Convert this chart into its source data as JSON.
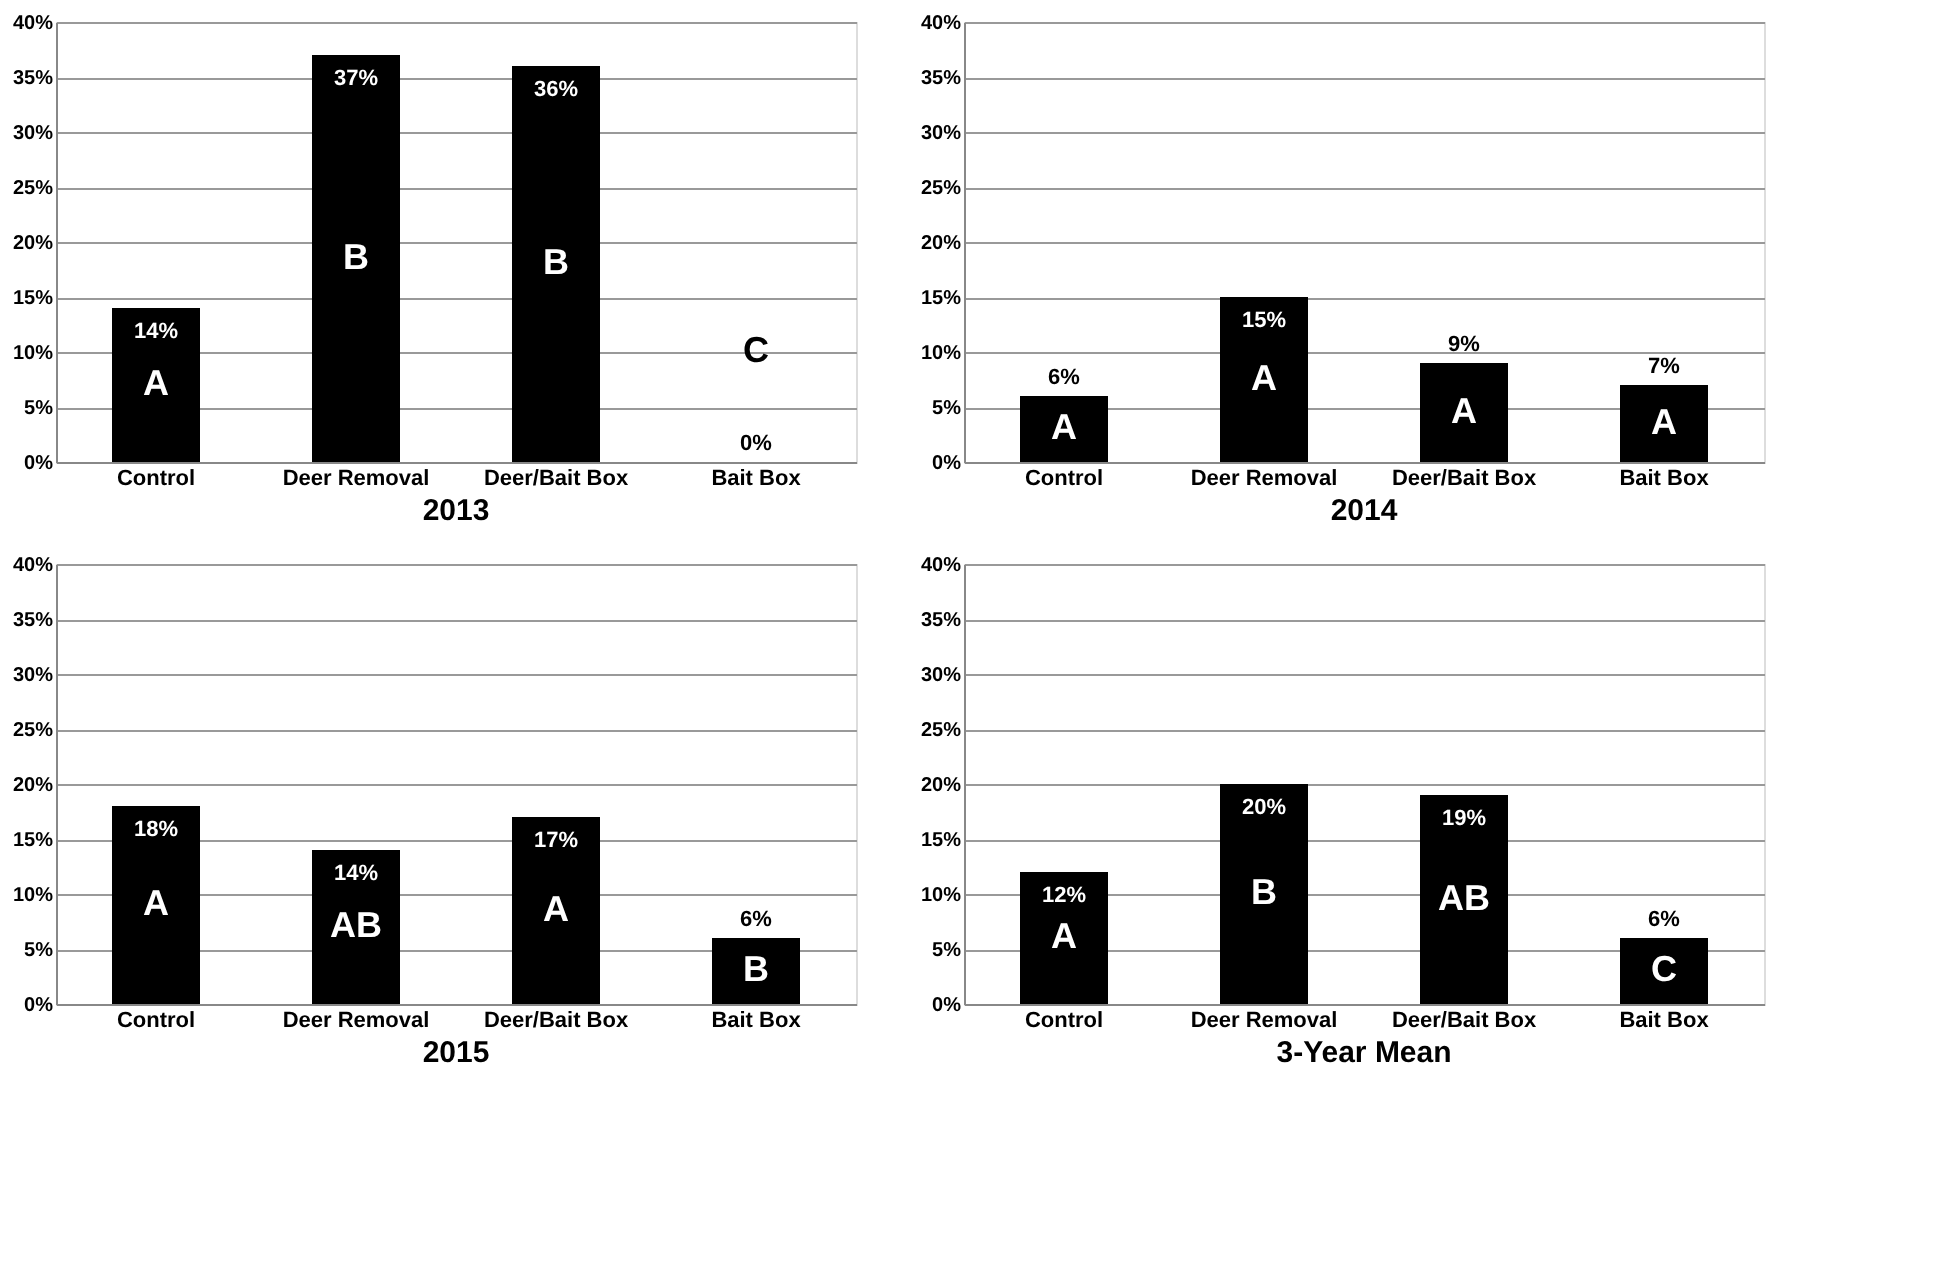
{
  "chart_data": [
    {
      "type": "bar",
      "title": "2013",
      "categories": [
        "Control",
        "Deer Removal",
        "Deer/Bait Box",
        "Bait Box"
      ],
      "values": [
        14,
        37,
        36,
        0
      ],
      "color": "#000000",
      "value_labels": [
        "14%",
        "37%",
        "36%",
        "0%"
      ],
      "ylim": [
        0,
        40
      ],
      "yticks": [
        {
          "value": 0,
          "label": "0%"
        },
        {
          "value": 5,
          "label": "5%"
        },
        {
          "value": 10,
          "label": "10%"
        },
        {
          "value": 15,
          "label": "15%"
        },
        {
          "value": 20,
          "label": "20%"
        },
        {
          "value": 25,
          "label": "25%"
        },
        {
          "value": 30,
          "label": "30%"
        },
        {
          "value": 35,
          "label": "35%"
        },
        {
          "value": 40,
          "label": "40%"
        }
      ],
      "grid": "y",
      "annotations": [
        "A",
        "B",
        "B",
        "C"
      ]
    },
    {
      "type": "bar",
      "title": "2014",
      "categories": [
        "Control",
        "Deer Removal",
        "Deer/Bait Box",
        "Bait Box"
      ],
      "values": [
        6,
        15,
        9,
        7
      ],
      "color": "#000000",
      "value_labels": [
        "6%",
        "15%",
        "9%",
        "7%"
      ],
      "ylim": [
        0,
        40
      ],
      "yticks": [
        {
          "value": 0,
          "label": "0%"
        },
        {
          "value": 5,
          "label": "5%"
        },
        {
          "value": 10,
          "label": "10%"
        },
        {
          "value": 15,
          "label": "15%"
        },
        {
          "value": 20,
          "label": "20%"
        },
        {
          "value": 25,
          "label": "25%"
        },
        {
          "value": 30,
          "label": "30%"
        },
        {
          "value": 35,
          "label": "35%"
        },
        {
          "value": 40,
          "label": "40%"
        }
      ],
      "grid": "y",
      "annotations": [
        "A",
        "A",
        "A",
        "A"
      ]
    },
    {
      "type": "bar",
      "title": "2015",
      "categories": [
        "Control",
        "Deer Removal",
        "Deer/Bait Box",
        "Bait Box"
      ],
      "values": [
        18,
        14,
        17,
        6
      ],
      "color": "#000000",
      "value_labels": [
        "18%",
        "14%",
        "17%",
        "6%"
      ],
      "ylim": [
        0,
        40
      ],
      "yticks": [
        {
          "value": 0,
          "label": "0%"
        },
        {
          "value": 5,
          "label": "5%"
        },
        {
          "value": 10,
          "label": "10%"
        },
        {
          "value": 15,
          "label": "15%"
        },
        {
          "value": 20,
          "label": "20%"
        },
        {
          "value": 25,
          "label": "25%"
        },
        {
          "value": 30,
          "label": "30%"
        },
        {
          "value": 35,
          "label": "35%"
        },
        {
          "value": 40,
          "label": "40%"
        }
      ],
      "grid": "y",
      "annotations": [
        "A",
        "AB",
        "A",
        "B"
      ]
    },
    {
      "type": "bar",
      "title": "3-Year Mean",
      "categories": [
        "Control",
        "Deer Removal",
        "Deer/Bait Box",
        "Bait Box"
      ],
      "values": [
        12,
        20,
        19,
        6
      ],
      "color": "#000000",
      "value_labels": [
        "12%",
        "20%",
        "19%",
        "6%"
      ],
      "ylim": [
        0,
        40
      ],
      "yticks": [
        {
          "value": 0,
          "label": "0%"
        },
        {
          "value": 5,
          "label": "5%"
        },
        {
          "value": 10,
          "label": "10%"
        },
        {
          "value": 15,
          "label": "15%"
        },
        {
          "value": 20,
          "label": "20%"
        },
        {
          "value": 25,
          "label": "25%"
        },
        {
          "value": 30,
          "label": "30%"
        },
        {
          "value": 35,
          "label": "35%"
        },
        {
          "value": 40,
          "label": "40%"
        }
      ],
      "grid": "y",
      "annotations": [
        "A",
        "B",
        "AB",
        "C"
      ]
    }
  ]
}
